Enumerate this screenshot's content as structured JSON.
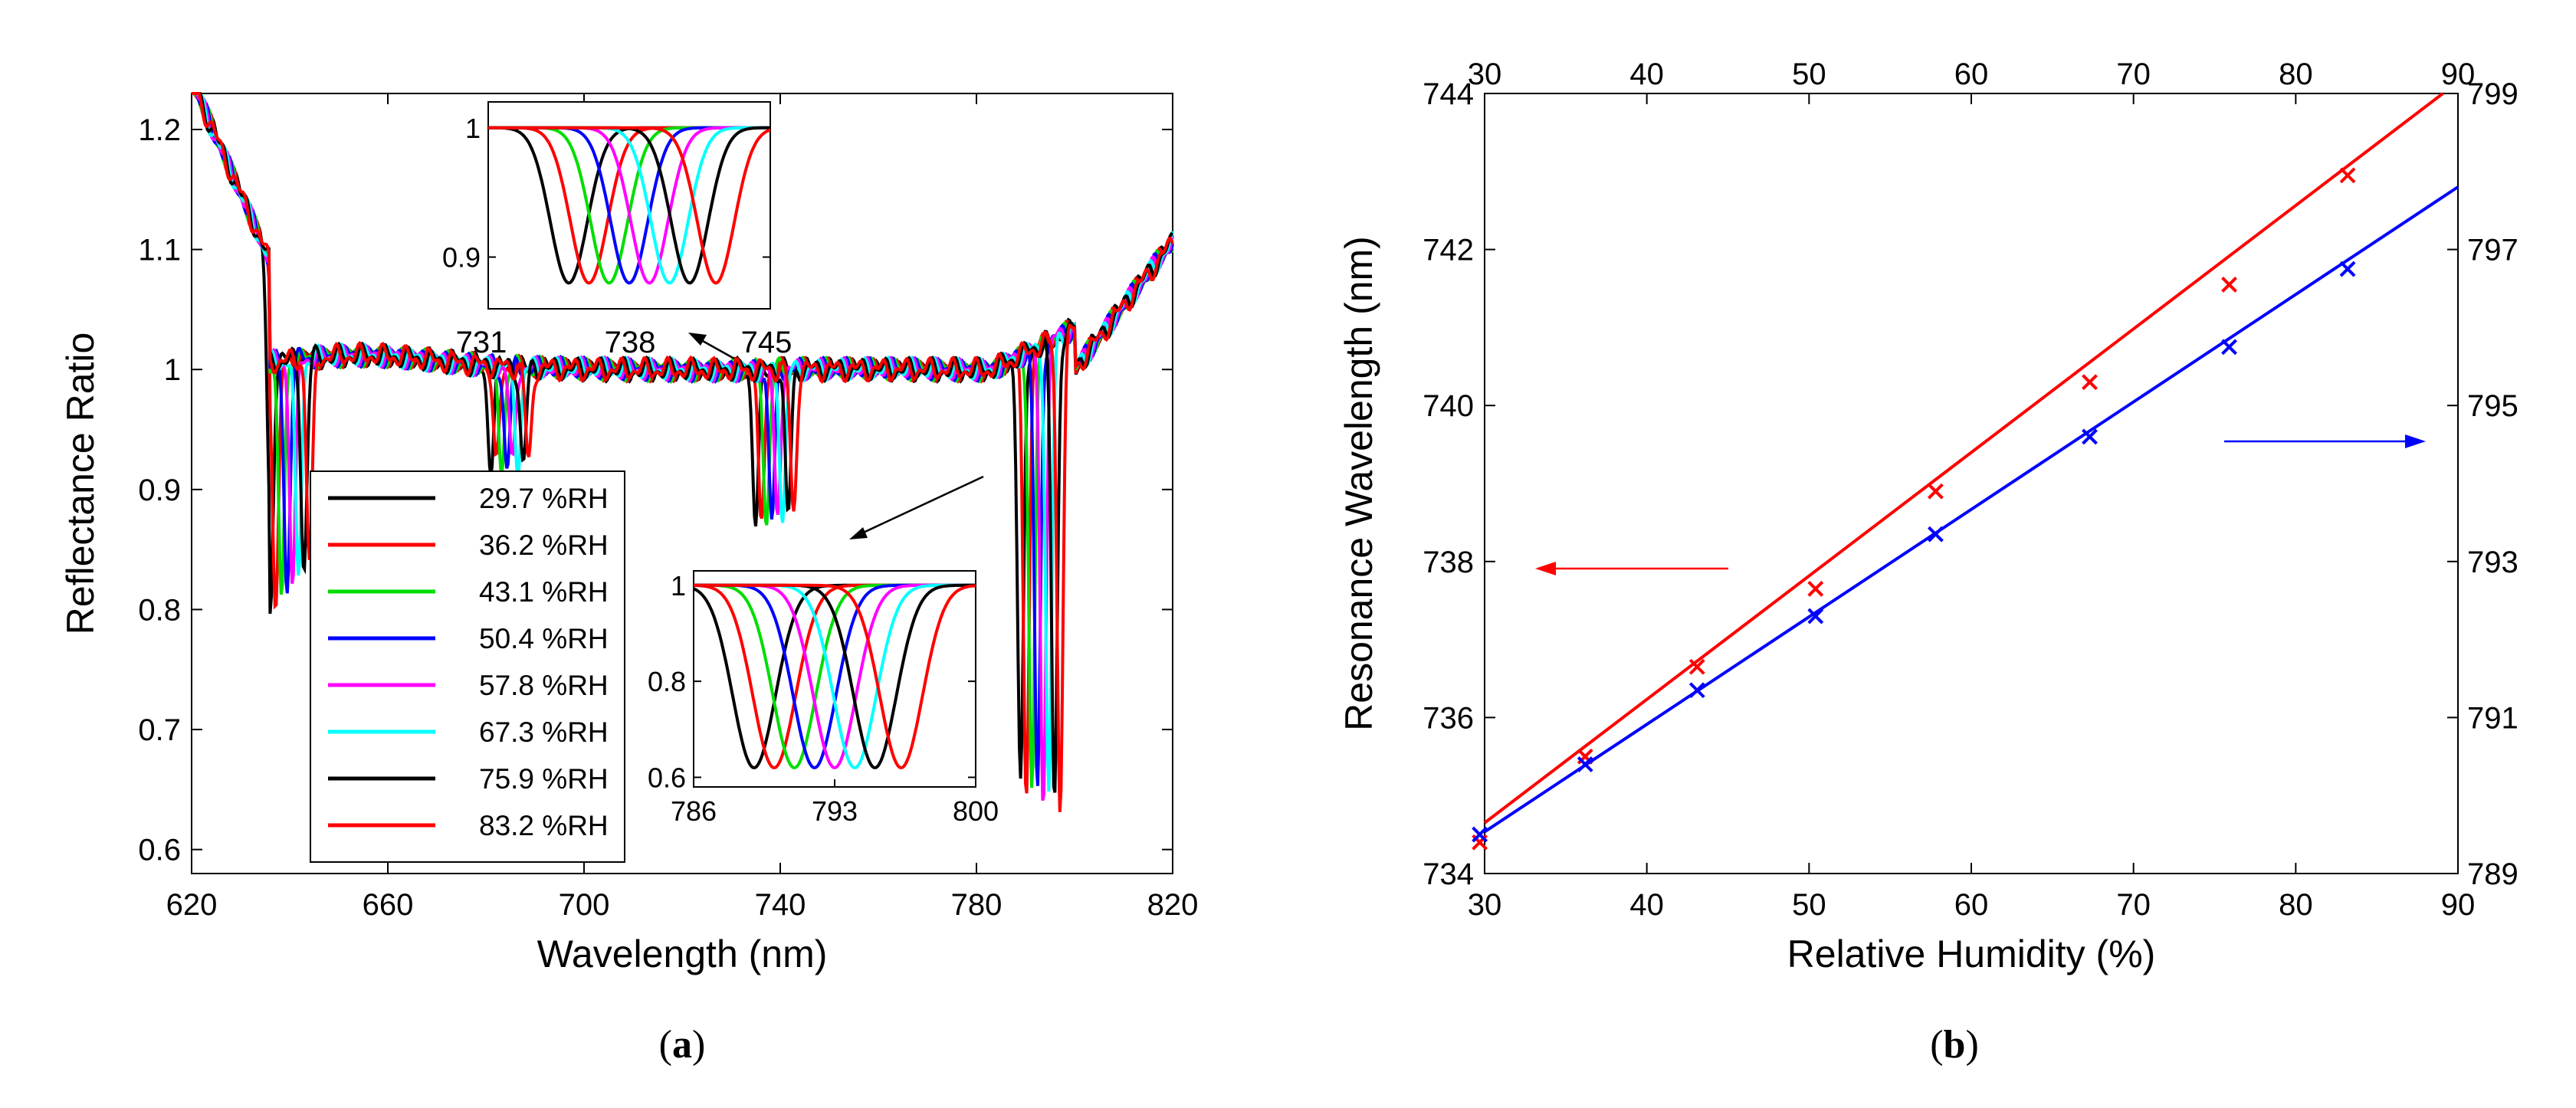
{
  "chart_data": [
    {
      "id": "a",
      "type": "line",
      "caption": "a",
      "xlabel": "Wavelength (nm)",
      "ylabel": "Reflectance Ratio",
      "xlim": [
        620,
        820
      ],
      "ylim": [
        0.58,
        1.23
      ],
      "xticks": [
        620,
        660,
        700,
        740,
        780,
        820
      ],
      "yticks": [
        0.6,
        0.7,
        0.8,
        0.9,
        1,
        1.1,
        1.2
      ],
      "dip_groups": [
        {
          "base_center": 636,
          "spacing": 1.15,
          "depth_first": 0.21,
          "depth_last": 0.17
        },
        {
          "base_center": 681,
          "spacing": 1.1,
          "depth_first": 0.085,
          "depth_last": 0.08
        },
        {
          "base_center": 735,
          "spacing": 1.1,
          "depth_first": 0.13,
          "depth_last": 0.12
        },
        {
          "base_center": 789,
          "spacing": 1.15,
          "depth_first": 0.36,
          "depth_last": 0.39
        }
      ],
      "series": [
        {
          "name": "29.7 %RH",
          "color": "#000000"
        },
        {
          "name": "36.2 %RH",
          "color": "#ff0000"
        },
        {
          "name": "43.1 %RH",
          "color": "#00dd00"
        },
        {
          "name": "50.4 %RH",
          "color": "#0000ff"
        },
        {
          "name": "57.8 %RH",
          "color": "#ff00ff"
        },
        {
          "name": "67.3 %RH",
          "color": "#00ffff"
        },
        {
          "name": "75.9 %RH",
          "color": "#000000"
        },
        {
          "name": "83.2 %RH",
          "color": "#ff0000"
        }
      ],
      "annotations": {
        "arrow_upper_label": "731 738 745"
      },
      "insets": [
        {
          "name": "upper",
          "xticks_labels": [
            "731",
            "738",
            "745"
          ],
          "xlim": [
            731,
            745
          ],
          "ylim": [
            0.86,
            1.02
          ],
          "yticks": [
            0.9,
            1
          ],
          "dip_centers": [
            735.0,
            736.0,
            737.0,
            738.0,
            739.0,
            740.0,
            741.0,
            742.3
          ],
          "dip_depth": 0.12,
          "dip_sigma": 1.3
        },
        {
          "name": "lower",
          "xticks": [
            786,
            793,
            800
          ],
          "xlim": [
            786,
            800
          ],
          "ylim": [
            0.58,
            1.03
          ],
          "yticks": [
            0.6,
            0.8,
            1
          ],
          "dip_centers": [
            789.0,
            790.0,
            791.0,
            792.0,
            793.0,
            794.0,
            795.0,
            796.3
          ],
          "dip_depth": 0.38,
          "dip_sigma": 1.5
        }
      ]
    },
    {
      "id": "b",
      "type": "scatter",
      "caption": "b",
      "xlabel": "Relative Humidity (%)",
      "ylabel": "Resonance Wavelength (nm)",
      "xlim": [
        30,
        90
      ],
      "ylim_left": [
        734,
        744
      ],
      "ylim_right": [
        789,
        799
      ],
      "xticks": [
        30,
        40,
        50,
        60,
        70,
        80,
        90
      ],
      "yticks_left": [
        734,
        736,
        738,
        740,
        742,
        744
      ],
      "yticks_right": [
        789,
        791,
        793,
        795,
        797,
        799
      ],
      "series": [
        {
          "name": "red (left axis)",
          "axis": "left",
          "color": "#ff0000",
          "x": [
            29.7,
            36.2,
            43.1,
            50.4,
            57.8,
            67.3,
            75.9,
            83.2
          ],
          "y": [
            734.4,
            735.5,
            736.65,
            737.65,
            738.9,
            740.3,
            741.55,
            742.95
          ],
          "fit": {
            "slope": 0.1583,
            "intercept": 729.9
          }
        },
        {
          "name": "blue (right axis)",
          "axis": "right",
          "color": "#0000ff",
          "x": [
            29.7,
            36.2,
            43.1,
            50.4,
            57.8,
            67.3,
            75.9,
            83.2
          ],
          "y": [
            789.5,
            790.4,
            791.35,
            792.3,
            793.35,
            794.6,
            795.75,
            796.75
          ],
          "fit": {
            "slope": 0.1378,
            "intercept": 785.4
          }
        }
      ]
    }
  ]
}
